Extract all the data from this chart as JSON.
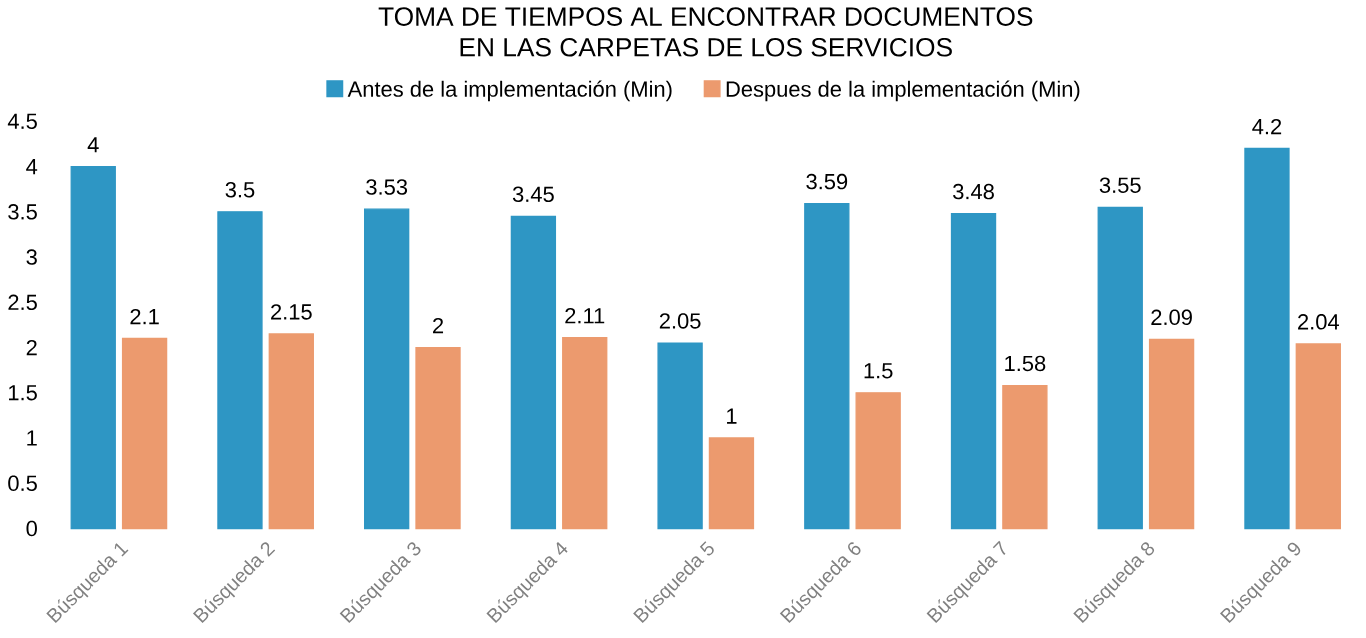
{
  "chart_data": {
    "type": "bar",
    "title": "TOMA DE TIEMPOS AL ENCONTRAR DOCUMENTOS EN LAS CARPETAS DE LOS SERVICIOS",
    "categories": [
      "Búsqueda 1",
      "Búsqueda 2",
      "Búsqueda 3",
      "Búsqueda 4",
      "Búsqueda 5",
      "Búsqueda 6",
      "Búsqueda 7",
      "Búsqueda 8",
      "Búsqueda 9"
    ],
    "series": [
      {
        "name": "Antes de la implementación (Min)",
        "color": "#2e96c4",
        "values": [
          4,
          3.5,
          3.53,
          3.45,
          2.05,
          3.59,
          3.48,
          3.55,
          4.2
        ]
      },
      {
        "name": "Despues de la implementación (Min)",
        "color": "#ec9a6e",
        "values": [
          2.1,
          2.15,
          2,
          2.11,
          1,
          1.5,
          1.58,
          2.09,
          2.04
        ]
      }
    ],
    "ylim": [
      0,
      4.5
    ],
    "yticks": [
      0,
      0.5,
      1,
      1.5,
      2,
      2.5,
      3,
      3.5,
      4,
      4.5
    ],
    "data_labels": true,
    "legend": "top",
    "grid": false
  }
}
